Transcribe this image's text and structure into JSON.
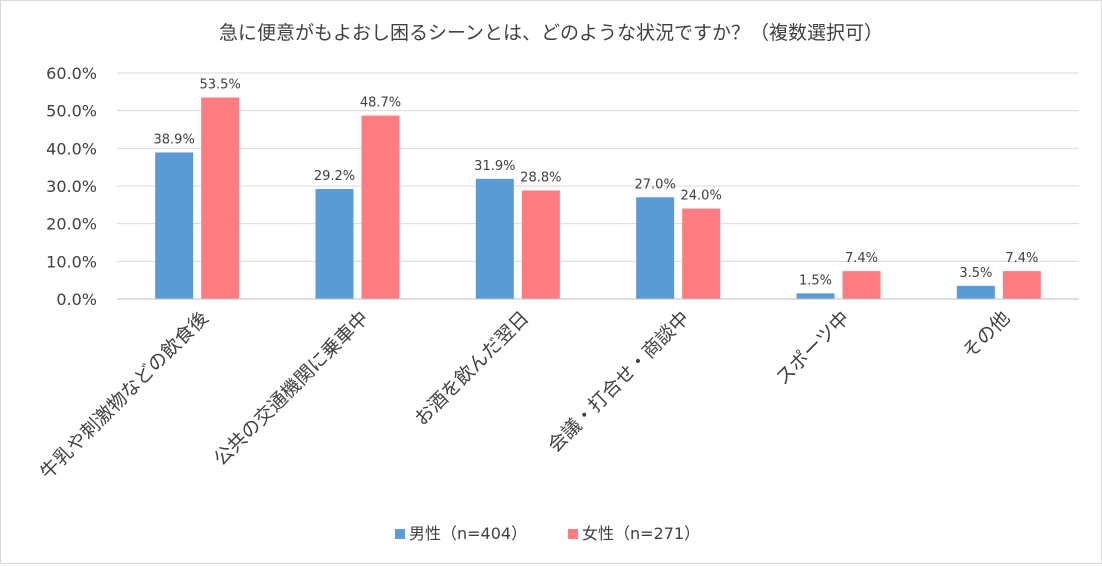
{
  "chart_data": {
    "type": "bar",
    "title": "急に便意がもよおし困るシーンとは、どのような状況ですか？（複数選択可）",
    "categories": [
      "牛乳や刺激物などの飲食後",
      "公共の交通機関に乗車中",
      "お酒を飲んだ翌日",
      "会議・打合せ・商談中",
      "スポーツ中",
      "その他"
    ],
    "series": [
      {
        "name": "男性（n=404）",
        "color": "#5b9bd5",
        "values": [
          38.9,
          29.2,
          31.9,
          27.0,
          1.5,
          3.5
        ],
        "labels": [
          "38.9%",
          "29.2%",
          "31.9%",
          "27.0%",
          "1.5%",
          "3.5%"
        ]
      },
      {
        "name": "女性（n=271）",
        "color": "#ff7c80",
        "values": [
          53.5,
          48.7,
          28.8,
          24.0,
          7.4,
          7.4
        ],
        "labels": [
          "53.5%",
          "48.7%",
          "28.8%",
          "24.0%",
          "7.4%",
          "7.4%"
        ]
      }
    ],
    "y_ticks": [
      "0.0%",
      "10.0%",
      "20.0%",
      "30.0%",
      "40.0%",
      "50.0%",
      "60.0%"
    ],
    "ylim": [
      0,
      60
    ],
    "xlabel": "",
    "ylabel": "",
    "legend_position": "bottom",
    "grid": true
  }
}
